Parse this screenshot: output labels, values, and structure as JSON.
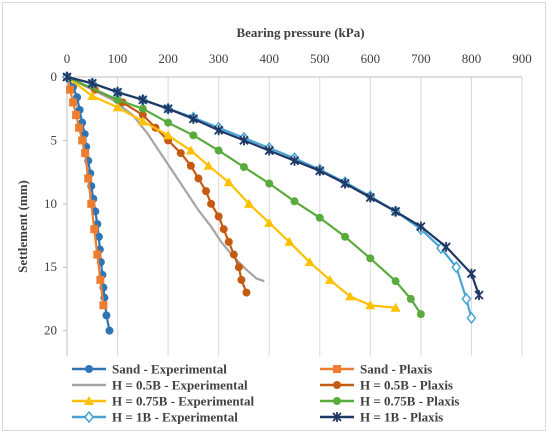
{
  "chart_data": {
    "type": "line",
    "xlabel": "Bearing pressure (kPa)",
    "ylabel": "Settlement (mm)",
    "xlim": [
      0,
      900
    ],
    "ylim": [
      0,
      22
    ],
    "x_axis_position": "top",
    "y_axis_inverted": true,
    "xticks": [
      "0",
      "100",
      "200",
      "300",
      "400",
      "500",
      "600",
      "700",
      "800",
      "900"
    ],
    "yticks": [
      "0",
      "5",
      "10",
      "15",
      "20"
    ],
    "grid": "vertical",
    "legend": "bottom",
    "series": [
      {
        "name": "Sand - Experimental",
        "color": "#2e75b6",
        "marker": "circle",
        "points": [
          [
            0,
            0
          ],
          [
            12,
            0.8
          ],
          [
            20,
            1.6
          ],
          [
            25,
            2.6
          ],
          [
            30,
            3.6
          ],
          [
            35,
            4.5
          ],
          [
            38,
            5.5
          ],
          [
            42,
            6.6
          ],
          [
            46,
            7.6
          ],
          [
            48,
            8.6
          ],
          [
            52,
            9.6
          ],
          [
            56,
            10.6
          ],
          [
            60,
            11.6
          ],
          [
            63,
            12.6
          ],
          [
            65,
            13.6
          ],
          [
            67,
            14.6
          ],
          [
            70,
            15.6
          ],
          [
            72,
            16.6
          ],
          [
            74,
            17.4
          ],
          [
            78,
            18.8
          ],
          [
            84,
            20.0
          ]
        ]
      },
      {
        "name": "Sand - Plaxis",
        "color": "#ed7d31",
        "marker": "square",
        "points": [
          [
            0,
            0
          ],
          [
            6,
            1.0
          ],
          [
            12,
            2.0
          ],
          [
            18,
            3.0
          ],
          [
            24,
            4.0
          ],
          [
            30,
            5.0
          ],
          [
            36,
            6.0
          ],
          [
            42,
            8.0
          ],
          [
            48,
            10.0
          ],
          [
            54,
            12.0
          ],
          [
            60,
            14.0
          ],
          [
            66,
            16.0
          ],
          [
            72,
            18.0
          ]
        ]
      },
      {
        "name": "H = 0.5B - Experimental",
        "color": "#a5a5a5",
        "marker": "none",
        "points": [
          [
            0,
            0
          ],
          [
            40,
            0.8
          ],
          [
            90,
            1.8
          ],
          [
            130,
            3.0
          ],
          [
            160,
            4.5
          ],
          [
            185,
            6.0
          ],
          [
            210,
            7.5
          ],
          [
            235,
            9.0
          ],
          [
            260,
            10.5
          ],
          [
            285,
            11.8
          ],
          [
            305,
            13.0
          ],
          [
            330,
            14.2
          ],
          [
            355,
            15.2
          ],
          [
            375,
            15.9
          ],
          [
            390,
            16.1
          ]
        ]
      },
      {
        "name": "H = 0.5B - Plaxis",
        "color": "#c55a11",
        "marker": "circle",
        "points": [
          [
            0,
            0
          ],
          [
            55,
            1.0
          ],
          [
            110,
            2.0
          ],
          [
            150,
            3.0
          ],
          [
            175,
            4.0
          ],
          [
            200,
            5.0
          ],
          [
            225,
            6.0
          ],
          [
            245,
            7.0
          ],
          [
            260,
            8.0
          ],
          [
            275,
            9.0
          ],
          [
            285,
            10.0
          ],
          [
            300,
            11.0
          ],
          [
            310,
            12.0
          ],
          [
            320,
            13.0
          ],
          [
            330,
            14.0
          ],
          [
            340,
            15.0
          ],
          [
            345,
            16.0
          ],
          [
            355,
            17.0
          ]
        ]
      },
      {
        "name": "H = 0.75B - Experimental",
        "color": "#ffc000",
        "marker": "triangle",
        "points": [
          [
            0,
            0
          ],
          [
            50,
            1.5
          ],
          [
            100,
            2.4
          ],
          [
            150,
            3.5
          ],
          [
            200,
            4.6
          ],
          [
            245,
            5.8
          ],
          [
            280,
            7.0
          ],
          [
            320,
            8.3
          ],
          [
            360,
            10.0
          ],
          [
            400,
            11.5
          ],
          [
            440,
            13.0
          ],
          [
            480,
            14.6
          ],
          [
            520,
            16.0
          ],
          [
            560,
            17.3
          ],
          [
            600,
            18.0
          ],
          [
            650,
            18.2
          ]
        ]
      },
      {
        "name": "H = 0.75B - Plaxis",
        "color": "#5aab3d",
        "marker": "circle",
        "points": [
          [
            0,
            0
          ],
          [
            100,
            1.8
          ],
          [
            150,
            2.5
          ],
          [
            200,
            3.6
          ],
          [
            250,
            4.6
          ],
          [
            300,
            5.8
          ],
          [
            350,
            7.1
          ],
          [
            400,
            8.4
          ],
          [
            450,
            9.8
          ],
          [
            500,
            11.1
          ],
          [
            550,
            12.6
          ],
          [
            600,
            14.3
          ],
          [
            650,
            16.1
          ],
          [
            680,
            17.5
          ],
          [
            700,
            18.7
          ]
        ]
      },
      {
        "name": "H = 1B - Experimental",
        "color": "#4aa3d4",
        "marker": "diamond-open",
        "points": [
          [
            0,
            0
          ],
          [
            50,
            0.5
          ],
          [
            100,
            1.2
          ],
          [
            150,
            1.8
          ],
          [
            200,
            2.5
          ],
          [
            250,
            3.2
          ],
          [
            300,
            4.0
          ],
          [
            350,
            4.8
          ],
          [
            400,
            5.6
          ],
          [
            450,
            6.4
          ],
          [
            500,
            7.3
          ],
          [
            550,
            8.3
          ],
          [
            600,
            9.4
          ],
          [
            650,
            10.6
          ],
          [
            700,
            12.0
          ],
          [
            740,
            13.5
          ],
          [
            770,
            15.0
          ],
          [
            790,
            17.5
          ],
          [
            800,
            19.0
          ]
        ]
      },
      {
        "name": "H = 1B - Plaxis",
        "color": "#1f3864",
        "marker": "star",
        "points": [
          [
            0,
            0
          ],
          [
            50,
            0.5
          ],
          [
            100,
            1.2
          ],
          [
            150,
            1.8
          ],
          [
            200,
            2.5
          ],
          [
            250,
            3.3
          ],
          [
            300,
            4.2
          ],
          [
            350,
            5.0
          ],
          [
            400,
            5.8
          ],
          [
            450,
            6.6
          ],
          [
            500,
            7.4
          ],
          [
            550,
            8.4
          ],
          [
            600,
            9.5
          ],
          [
            650,
            10.6
          ],
          [
            700,
            11.8
          ],
          [
            750,
            13.4
          ],
          [
            800,
            15.5
          ],
          [
            815,
            17.2
          ]
        ]
      }
    ]
  }
}
